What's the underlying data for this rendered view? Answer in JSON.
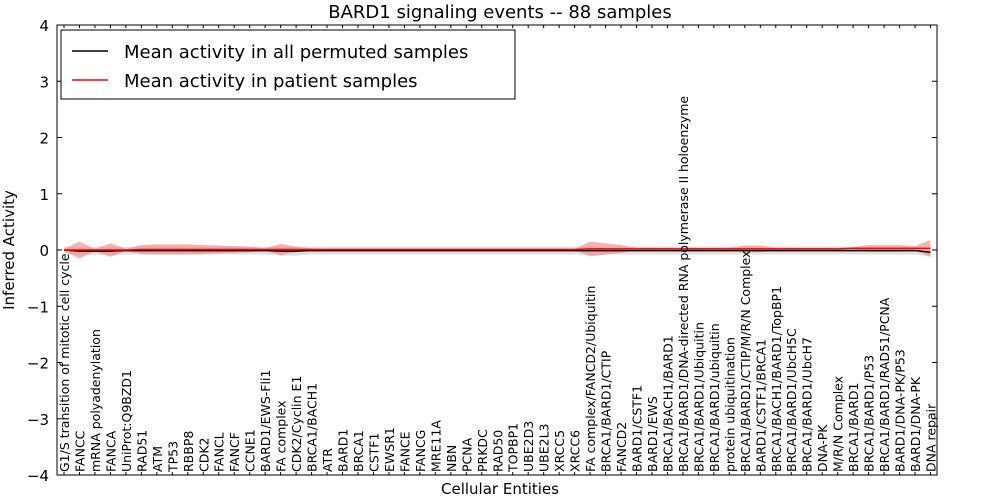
{
  "chart_data": {
    "type": "line",
    "title": "BARD1 signaling events -- 88 samples",
    "xlabel": "Cellular Entities",
    "ylabel": "Inferred Activity",
    "ylim": [
      -4,
      4
    ],
    "yticks": [
      -4,
      -3,
      -2,
      -1,
      0,
      1,
      2,
      3,
      4
    ],
    "ytick_labels": [
      "−4",
      "−3",
      "−2",
      "−1",
      "0",
      "1",
      "2",
      "3",
      "4"
    ],
    "legend": {
      "placement": "top-left",
      "entries": [
        "Mean activity in all permuted samples",
        "Mean activity in patient samples"
      ]
    },
    "colors": {
      "permuted": "#000000",
      "patient": "#ff0000",
      "permuted_band": "#e0e0e0",
      "patient_band": "#f08080"
    },
    "categories": [
      "G1/S transition of mitotic cell cycle",
      "FANCC",
      "mRNA polyadenylation",
      "FANCA",
      "UniProt:Q9BZD1",
      "RAD51",
      "ATM",
      "TP53",
      "RBBP8",
      "CDK2",
      "FANCL",
      "FANCF",
      "CCNE1",
      "BARD1/EWS-Fli1",
      "FA complex",
      "CDK2/Cyclin E1",
      "BRCA1/BACH1",
      "ATR",
      "BARD1",
      "BRCA1",
      "CSTF1",
      "EWSR1",
      "FANCE",
      "FANCG",
      "MRE11A",
      "NBN",
      "PCNA",
      "PRKDC",
      "RAD50",
      "TOPBP1",
      "UBE2D3",
      "UBE2L3",
      "XRCC5",
      "XRCC6",
      "FA complex/FANCD2/Ubiquitin",
      "BRCA1/BARD1/CTIP",
      "FANCD2",
      "BARD1/CSTF1",
      "BARD1/EWS",
      "BRCA1/BACH1/BARD1",
      "BRCA1/BARD1/DNA-directed RNA polymerase II holoenzyme",
      "BRCA1/BARD1/Ubiquitin",
      "BRCA1/BARD1/ubiquitin",
      "protein ubiquitination",
      "BRCA1/BARD1/CTIP/M/R/N Complex",
      "BARD1/CSTF1/BRCA1",
      "BRCA1/BACH1/BARD1/TopBP1",
      "BRCA1/BARD1/UbcH5C",
      "BRCA1/BARD1/UbcH7",
      "DNA-PK",
      "M/R/N Complex",
      "BRCA1/BARD1",
      "BRCA1/BARD1/P53",
      "BRCA1/BARD1/RAD51/PCNA",
      "BARD1/DNA-PK/P53",
      "BARD1/DNA-PK",
      "DNA repair"
    ],
    "series": [
      {
        "name": "Mean activity in all permuted samples",
        "values": [
          0,
          -0.02,
          -0.02,
          -0.02,
          -0.01,
          -0.01,
          -0.01,
          -0.01,
          -0.01,
          -0.01,
          -0.01,
          -0.01,
          -0.01,
          -0.01,
          -0.02,
          -0.02,
          -0.01,
          -0.01,
          -0.01,
          -0.01,
          -0.01,
          -0.01,
          -0.01,
          -0.01,
          -0.01,
          -0.01,
          -0.01,
          -0.01,
          -0.01,
          -0.01,
          -0.01,
          -0.01,
          -0.01,
          -0.01,
          -0.01,
          -0.01,
          -0.01,
          -0.01,
          -0.01,
          -0.01,
          -0.01,
          -0.01,
          -0.01,
          -0.01,
          -0.01,
          -0.01,
          -0.01,
          -0.01,
          -0.01,
          -0.01,
          -0.01,
          -0.01,
          -0.01,
          -0.01,
          -0.01,
          -0.01,
          -0.04
        ],
        "band": [
          0.06,
          0.07,
          0.07,
          0.07,
          0.07,
          0.07,
          0.07,
          0.07,
          0.07,
          0.07,
          0.07,
          0.07,
          0.07,
          0.07,
          0.08,
          0.08,
          0.07,
          0.07,
          0.07,
          0.07,
          0.07,
          0.07,
          0.07,
          0.07,
          0.07,
          0.07,
          0.07,
          0.07,
          0.07,
          0.07,
          0.07,
          0.07,
          0.07,
          0.07,
          0.08,
          0.07,
          0.07,
          0.07,
          0.07,
          0.07,
          0.07,
          0.07,
          0.07,
          0.07,
          0.07,
          0.07,
          0.07,
          0.07,
          0.07,
          0.07,
          0.07,
          0.07,
          0.07,
          0.07,
          0.07,
          0.07,
          0.08
        ]
      },
      {
        "name": "Mean activity in patient samples",
        "values": [
          0,
          0,
          0,
          0,
          0,
          0.01,
          0.01,
          0.01,
          0.01,
          0.01,
          0.01,
          0.01,
          0.01,
          0.01,
          0.01,
          0.01,
          0.01,
          0.01,
          0.01,
          0.01,
          0.01,
          0.01,
          0.01,
          0.01,
          0.01,
          0.01,
          0.01,
          0.01,
          0.01,
          0.01,
          0.01,
          0.01,
          0.01,
          0.01,
          0.02,
          0.02,
          0.02,
          0.02,
          0.02,
          0.02,
          0.02,
          0.02,
          0.02,
          0.02,
          0.02,
          0.02,
          0.02,
          0.02,
          0.02,
          0.02,
          0.02,
          0.03,
          0.03,
          0.03,
          0.03,
          0.03,
          0.03
        ],
        "band": [
          0.02,
          0.15,
          0.02,
          0.12,
          0.02,
          0.08,
          0.09,
          0.09,
          0.09,
          0.08,
          0.07,
          0.06,
          0.05,
          0.02,
          0.1,
          0.05,
          0.02,
          0.01,
          0.01,
          0.01,
          0.01,
          0.01,
          0.01,
          0.01,
          0.01,
          0.01,
          0.01,
          0.01,
          0.01,
          0.01,
          0.01,
          0.01,
          0.01,
          0.01,
          0.13,
          0.1,
          0.07,
          0.02,
          0.02,
          0.02,
          0.02,
          0.02,
          0.02,
          0.02,
          0.06,
          0.06,
          0.02,
          0.02,
          0.02,
          0.02,
          0.02,
          0.02,
          0.06,
          0.06,
          0.06,
          0.04,
          0.15
        ]
      }
    ]
  }
}
